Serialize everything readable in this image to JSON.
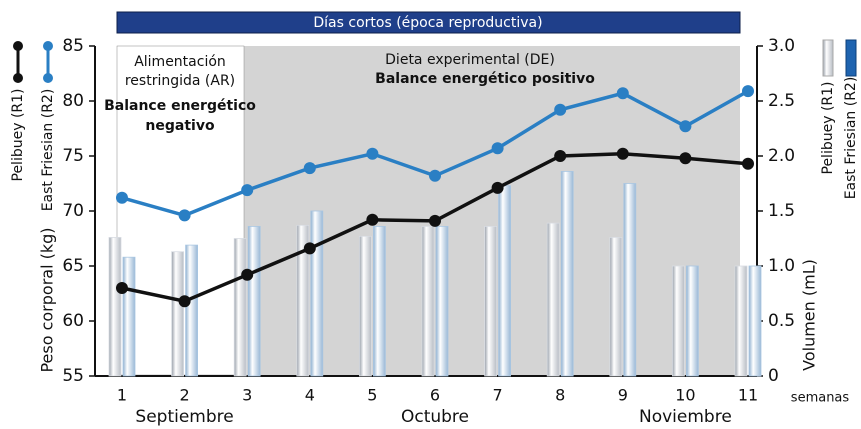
{
  "chart_data": {
    "type": "combo",
    "banner": "Días cortos (época reproductiva)",
    "annotations": {
      "ar": [
        "Alimentación",
        "restringida (AR)"
      ],
      "ar_balance": [
        "Balance energético",
        "negativo"
      ],
      "de": [
        "Dieta experimental (DE)"
      ],
      "de_balance": [
        "Balance energético positivo"
      ]
    },
    "x": [
      1,
      2,
      3,
      4,
      5,
      6,
      7,
      8,
      9,
      10,
      11
    ],
    "xlabel": "semanas",
    "months": [
      {
        "label": "Septiembre",
        "x": 2
      },
      {
        "label": "Octubre",
        "x": 6
      },
      {
        "label": "Noviembre",
        "x": 10
      }
    ],
    "ylabel": "Peso corporal (kg)",
    "y2label": "Volumen (mL)",
    "ylim": [
      55,
      85
    ],
    "yticks": [
      55,
      60,
      65,
      70,
      75,
      80,
      85
    ],
    "y2lim": [
      0,
      3
    ],
    "y2ticks": [
      0,
      0.5,
      {
        "value": 1,
        "label": "1.0"
      },
      1.5,
      {
        "value": 2,
        "label": "2.0"
      },
      2.5,
      {
        "value": 3,
        "label": "3.0"
      }
    ],
    "series": [
      {
        "name": "Pelibuey (R1)",
        "type": "bar",
        "axis": "y2",
        "color": "#d9dde3",
        "values": [
          1.26,
          1.13,
          1.25,
          1.37,
          1.27,
          1.36,
          1.36,
          1.39,
          1.26,
          1.0,
          1.0
        ]
      },
      {
        "name": "East Friesian (R2)",
        "type": "bar",
        "axis": "y2",
        "color": "#a9c6e2",
        "values": [
          1.08,
          1.19,
          1.36,
          1.5,
          1.36,
          1.36,
          1.73,
          1.86,
          1.75,
          1.0,
          1.0
        ]
      },
      {
        "name": "Pelibuey (R1)",
        "type": "line",
        "axis": "y",
        "color": "#111111",
        "values": [
          63.0,
          61.8,
          64.2,
          66.6,
          69.2,
          69.1,
          72.1,
          75.0,
          75.2,
          74.8,
          74.3
        ]
      },
      {
        "name": "East Friesian (R2)",
        "type": "line",
        "axis": "y",
        "color": "#2a7fc4",
        "values": [
          71.2,
          69.6,
          71.9,
          73.9,
          75.2,
          73.2,
          75.7,
          79.2,
          80.7,
          77.7,
          80.9
        ]
      }
    ]
  }
}
